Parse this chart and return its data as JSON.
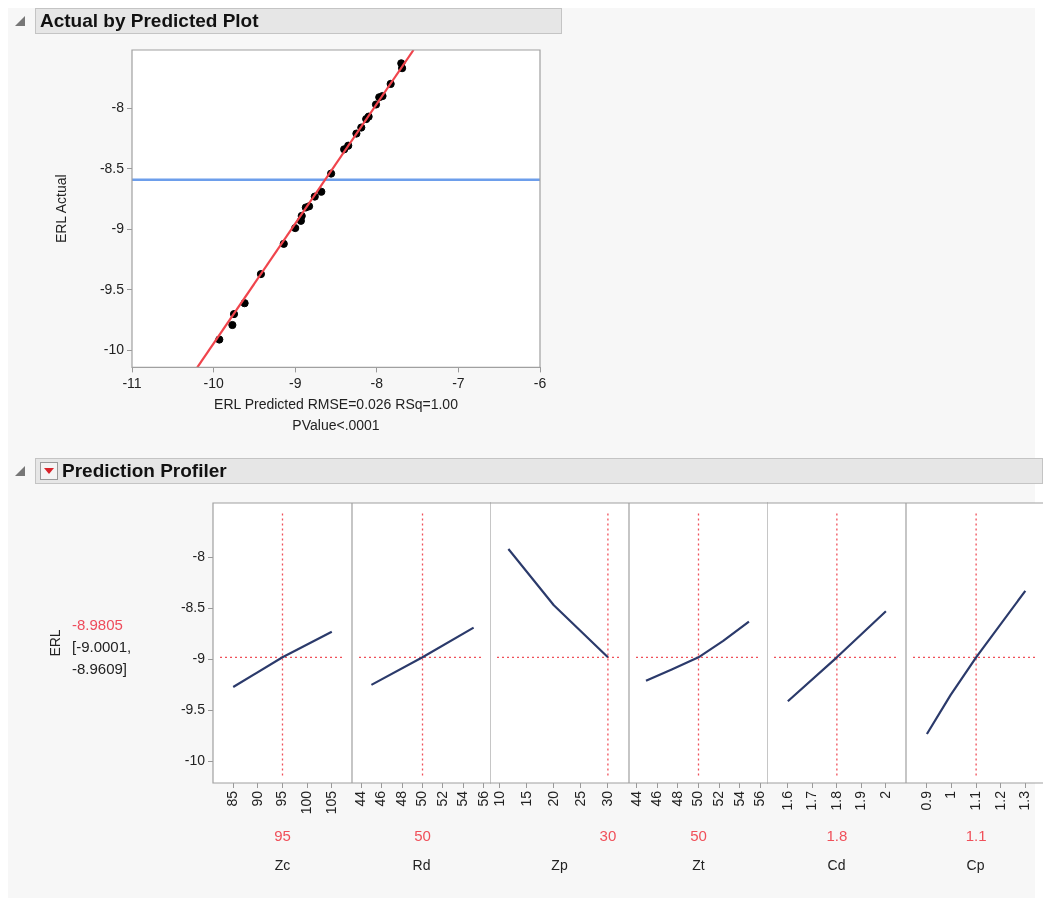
{
  "chart_data": [
    {
      "type": "scatter",
      "title": "Actual by Predicted Plot",
      "xlabel": "ERL Predicted RMSE=0.026 RSq=1.00",
      "ylabel": "ERL Actual",
      "annotations": [
        "PValue<.0001"
      ],
      "xlim": [
        -11,
        -6
      ],
      "xticks": [
        -11,
        -10,
        -9,
        -8,
        -7,
        -6
      ],
      "ylim": [
        -10.14,
        -7.52
      ],
      "yticks": [
        -10,
        -9.5,
        -9,
        -8.5,
        -8
      ],
      "marker": "circle",
      "ref_lines": [
        {
          "axis": "y",
          "value": -8.59,
          "color": "#6d9eeb"
        }
      ],
      "series": [
        {
          "type": "line",
          "color": "#f0444c",
          "marker": "none",
          "x": [
            -10.2,
            -7.55
          ],
          "values": [
            -10.14,
            -7.52
          ]
        },
        {
          "color": "#000000",
          "x": [
            -9.93,
            -9.77,
            -9.75,
            -9.62,
            -9.42,
            -9.14,
            -9.0,
            -8.93,
            -8.92,
            -8.87,
            -8.83,
            -8.76,
            -8.68,
            -8.56,
            -8.4,
            -8.35,
            -8.25,
            -8.19,
            -8.13,
            -8.1,
            -8.01,
            -7.97,
            -7.93,
            -7.83,
            -7.7,
            -7.69
          ],
          "values": [
            -9.91,
            -9.79,
            -9.7,
            -9.61,
            -9.37,
            -9.12,
            -8.99,
            -8.93,
            -8.89,
            -8.82,
            -8.81,
            -8.73,
            -8.69,
            -8.54,
            -8.34,
            -8.31,
            -8.21,
            -8.16,
            -8.09,
            -8.07,
            -7.97,
            -7.91,
            -7.9,
            -7.8,
            -7.63,
            -7.67
          ]
        }
      ]
    },
    {
      "type": "line",
      "title": "Prediction Profiler",
      "ylabel": "ERL",
      "annotations": [
        "-8.9805",
        "[-9.0001, -8.9609]"
      ],
      "xlabel": "Zc",
      "xlim": [
        80.9,
        109.1
      ],
      "xticks": [
        85,
        90,
        95,
        100,
        105
      ],
      "ylim": [
        -10.21,
        -7.47
      ],
      "yticks": [
        -10,
        -9.5,
        -9,
        -8.5,
        -8
      ],
      "ref_lines": [
        {
          "axis": "x",
          "value": 95,
          "label": "95",
          "color": "#f0505a",
          "line_style": "dotted"
        },
        {
          "axis": "y",
          "value": -8.9805,
          "color": "#f0505a",
          "line_style": "dotted"
        }
      ],
      "series": [
        {
          "color": "#2b3a6b",
          "x": [
            85,
            95,
            105
          ],
          "values": [
            -9.27,
            -8.98,
            -8.73
          ]
        }
      ]
    },
    {
      "type": "line",
      "xlabel": "Rd",
      "tick_labels": "x",
      "xlim": [
        43.1,
        56.7
      ],
      "xticks": [
        44,
        46,
        48,
        50,
        52,
        54,
        56
      ],
      "ylim": [
        -10.21,
        -7.47
      ],
      "ref_lines": [
        {
          "axis": "x",
          "value": 50,
          "label": "50",
          "color": "#f0505a",
          "line_style": "dotted"
        },
        {
          "axis": "y",
          "value": -8.9805,
          "color": "#f0505a",
          "line_style": "dotted"
        }
      ],
      "series": [
        {
          "color": "#2b3a6b",
          "x": [
            45,
            50,
            55
          ],
          "values": [
            -9.25,
            -8.98,
            -8.69
          ]
        }
      ]
    },
    {
      "type": "line",
      "xlabel": "Zp",
      "tick_labels": "x",
      "xlim": [
        8.2,
        33.9
      ],
      "xticks": [
        10,
        15,
        20,
        25,
        30
      ],
      "ylim": [
        -10.21,
        -7.47
      ],
      "ref_lines": [
        {
          "axis": "x",
          "value": 30,
          "label": "30",
          "color": "#f0505a",
          "line_style": "dotted"
        },
        {
          "axis": "y",
          "value": -8.9805,
          "color": "#f0505a",
          "line_style": "dotted"
        }
      ],
      "series": [
        {
          "color": "#2b3a6b",
          "x": [
            11.6,
            20,
            30
          ],
          "values": [
            -7.92,
            -8.47,
            -8.98
          ]
        }
      ]
    },
    {
      "type": "line",
      "xlabel": "Zt",
      "tick_labels": "x",
      "xlim": [
        43.25,
        56.75
      ],
      "xticks": [
        44,
        46,
        48,
        50,
        52,
        54,
        56
      ],
      "ylim": [
        -10.21,
        -7.47
      ],
      "ref_lines": [
        {
          "axis": "x",
          "value": 50,
          "label": "50",
          "color": "#f0505a",
          "line_style": "dotted"
        },
        {
          "axis": "y",
          "value": -8.9805,
          "color": "#f0505a",
          "line_style": "dotted"
        }
      ],
      "series": [
        {
          "color": "#2b3a6b",
          "x": [
            44.9,
            47.4,
            50,
            52.4,
            54.9
          ],
          "values": [
            -9.21,
            -9.1,
            -8.98,
            -8.82,
            -8.63
          ]
        }
      ]
    },
    {
      "type": "line",
      "xlabel": "Cd",
      "tick_labels": "x",
      "xlim": [
        1.515,
        2.082
      ],
      "xticks": [
        1.6,
        1.7,
        1.8,
        1.9,
        2
      ],
      "ylim": [
        -10.21,
        -7.47
      ],
      "ref_lines": [
        {
          "axis": "x",
          "value": 1.8,
          "label": "1.8",
          "color": "#f0505a",
          "line_style": "dotted"
        },
        {
          "axis": "y",
          "value": -8.9805,
          "color": "#f0505a",
          "line_style": "dotted"
        }
      ],
      "series": [
        {
          "color": "#2b3a6b",
          "x": [
            1.6,
            1.8,
            2.0
          ],
          "values": [
            -9.41,
            -8.98,
            -8.53
          ]
        }
      ]
    },
    {
      "type": "line",
      "xlabel": "Cp",
      "tick_labels": "x",
      "xlim": [
        0.815,
        1.38
      ],
      "xticks": [
        0.9,
        1,
        1.1,
        1.2,
        1.3
      ],
      "ylim": [
        -10.21,
        -7.47
      ],
      "ref_lines": [
        {
          "axis": "x",
          "value": 1.1,
          "label": "1.1",
          "color": "#f0505a",
          "line_style": "dotted"
        },
        {
          "axis": "y",
          "value": -8.9805,
          "color": "#f0505a",
          "line_style": "dotted"
        }
      ],
      "series": [
        {
          "color": "#2b3a6b",
          "x": [
            0.9,
            0.996,
            1.1,
            1.3
          ],
          "values": [
            -9.73,
            -9.35,
            -8.98,
            -8.33
          ]
        }
      ]
    }
  ]
}
